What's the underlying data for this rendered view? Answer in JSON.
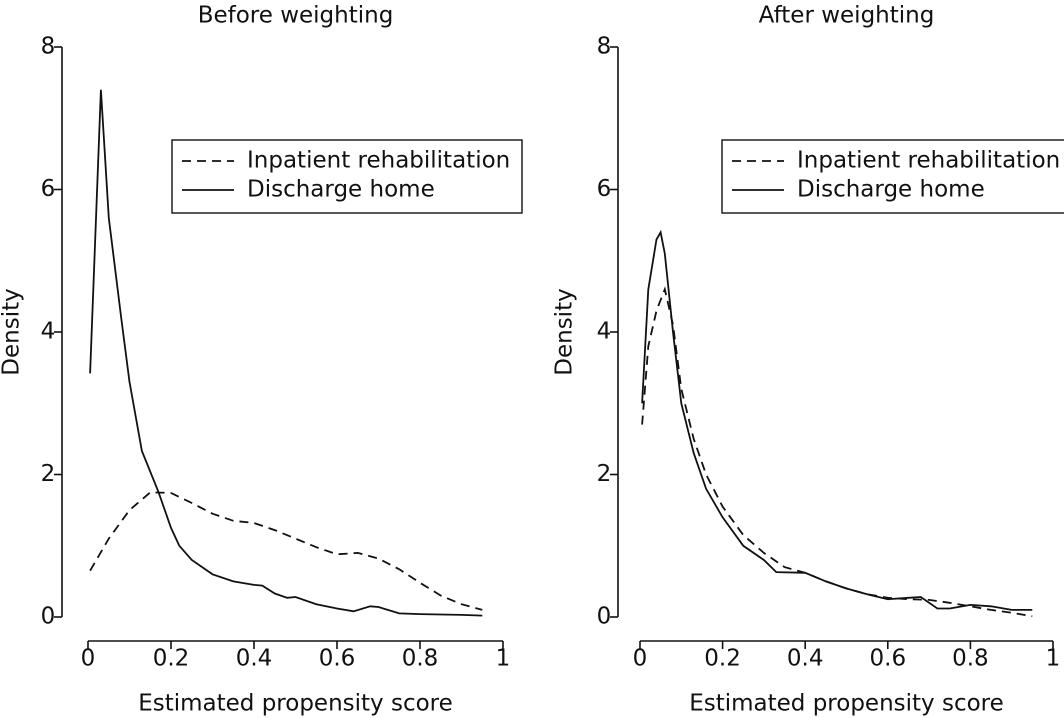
{
  "chart_data": [
    {
      "type": "line",
      "title": "Before weighting",
      "xlabel": "Estimated propensity score",
      "ylabel": "Density",
      "xlim": [
        0,
        1
      ],
      "ylim": [
        0,
        8
      ],
      "xticks": [
        0,
        0.2,
        0.4,
        0.6,
        0.8,
        1
      ],
      "yticks": [
        0,
        2,
        4,
        6,
        8
      ],
      "legend": "upper right",
      "series": [
        {
          "name": "Inpatient rehabilitation",
          "color": "#111111",
          "line_style": "dashed",
          "x": [
            0.005,
            0.05,
            0.1,
            0.15,
            0.2,
            0.25,
            0.3,
            0.35,
            0.4,
            0.45,
            0.5,
            0.55,
            0.6,
            0.65,
            0.7,
            0.75,
            0.8,
            0.85,
            0.9,
            0.95
          ],
          "values": [
            0.65,
            1.1,
            1.5,
            1.75,
            1.74,
            1.6,
            1.45,
            1.35,
            1.32,
            1.22,
            1.1,
            0.98,
            0.88,
            0.9,
            0.82,
            0.67,
            0.48,
            0.3,
            0.18,
            0.1
          ]
        },
        {
          "name": "Discharge home",
          "color": "#111111",
          "line_style": "solid",
          "x": [
            0.005,
            0.031,
            0.05,
            0.08,
            0.1,
            0.13,
            0.17,
            0.2,
            0.22,
            0.25,
            0.3,
            0.35,
            0.4,
            0.42,
            0.45,
            0.48,
            0.5,
            0.55,
            0.6,
            0.64,
            0.68,
            0.7,
            0.75,
            0.8,
            0.9,
            0.95
          ],
          "values": [
            3.42,
            7.4,
            5.6,
            4.2,
            3.3,
            2.33,
            1.75,
            1.25,
            1.0,
            0.8,
            0.6,
            0.5,
            0.45,
            0.44,
            0.33,
            0.27,
            0.28,
            0.18,
            0.12,
            0.08,
            0.15,
            0.14,
            0.05,
            0.04,
            0.03,
            0.02
          ]
        }
      ]
    },
    {
      "type": "line",
      "title": "After weighting",
      "xlabel": "Estimated propensity score",
      "ylabel": "Density",
      "xlim": [
        0,
        1
      ],
      "ylim": [
        0,
        8
      ],
      "xticks": [
        0,
        0.2,
        0.4,
        0.6,
        0.8,
        1
      ],
      "yticks": [
        0,
        2,
        4,
        6,
        8
      ],
      "legend": "upper right",
      "series": [
        {
          "name": "Inpatient rehabilitation",
          "color": "#111111",
          "line_style": "dashed",
          "x": [
            0.005,
            0.02,
            0.04,
            0.06,
            0.08,
            0.1,
            0.13,
            0.16,
            0.2,
            0.25,
            0.3,
            0.35,
            0.4,
            0.45,
            0.5,
            0.55,
            0.6,
            0.65,
            0.7,
            0.75,
            0.8,
            0.85,
            0.9,
            0.95
          ],
          "values": [
            2.7,
            3.8,
            4.3,
            4.6,
            4.1,
            3.2,
            2.5,
            2.0,
            1.55,
            1.15,
            0.9,
            0.7,
            0.62,
            0.5,
            0.4,
            0.32,
            0.27,
            0.25,
            0.24,
            0.2,
            0.15,
            0.1,
            0.06,
            0.01
          ]
        },
        {
          "name": "Discharge home",
          "color": "#111111",
          "line_style": "solid",
          "x": [
            0.005,
            0.02,
            0.04,
            0.05,
            0.06,
            0.08,
            0.1,
            0.13,
            0.16,
            0.2,
            0.25,
            0.3,
            0.33,
            0.4,
            0.45,
            0.5,
            0.55,
            0.6,
            0.65,
            0.68,
            0.72,
            0.75,
            0.8,
            0.85,
            0.9,
            0.95
          ],
          "values": [
            3.0,
            4.6,
            5.3,
            5.4,
            5.1,
            4.0,
            3.0,
            2.3,
            1.8,
            1.4,
            1.0,
            0.8,
            0.63,
            0.62,
            0.5,
            0.4,
            0.32,
            0.25,
            0.27,
            0.28,
            0.12,
            0.12,
            0.17,
            0.15,
            0.1,
            0.1
          ]
        }
      ]
    }
  ]
}
